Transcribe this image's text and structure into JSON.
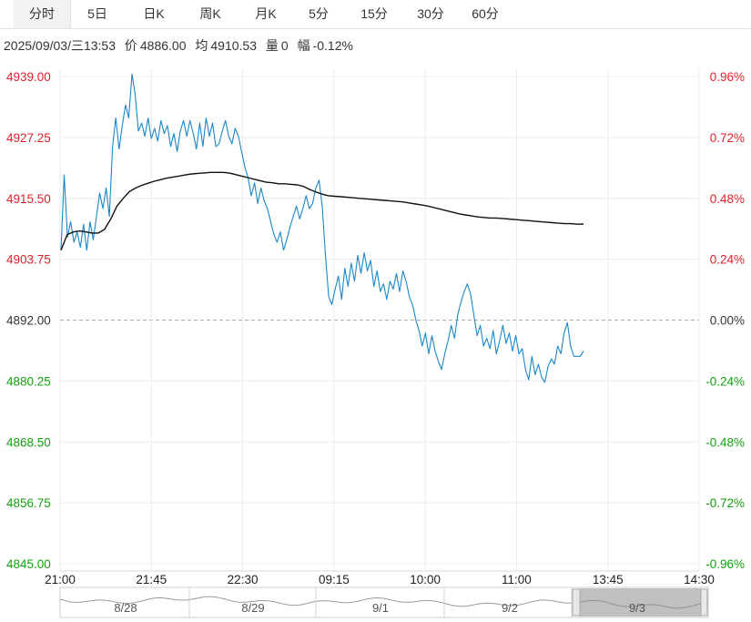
{
  "tabs": [
    {
      "label": "分时",
      "active": true
    },
    {
      "label": "5日",
      "active": false
    },
    {
      "label": "日K",
      "active": false
    },
    {
      "label": "周K",
      "active": false
    },
    {
      "label": "月K",
      "active": false
    },
    {
      "label": "5分",
      "active": false
    },
    {
      "label": "15分",
      "active": false
    },
    {
      "label": "30分",
      "active": false
    },
    {
      "label": "60分",
      "active": false
    }
  ],
  "info": {
    "datetime": "2025/09/03/三13:53",
    "price_label": "价",
    "price": "4886.00",
    "avg_label": "均",
    "avg": "4910.53",
    "vol_label": "量",
    "vol": "0",
    "chg_label": "幅",
    "chg": "-0.12%"
  },
  "chart_data": {
    "type": "line",
    "prev_close": 4892.0,
    "ylim": [
      4845.0,
      4939.0
    ],
    "y_ticks": [
      "4939.00",
      "4927.25",
      "4915.50",
      "4903.75",
      "4892.00",
      "4880.25",
      "4868.50",
      "4856.75",
      "4845.00"
    ],
    "pct_ticks": [
      "0.96%",
      "0.72%",
      "0.48%",
      "0.24%",
      "0.00%",
      "-0.24%",
      "-0.48%",
      "-0.72%",
      "-0.96%"
    ],
    "x_ticks": [
      "21:00",
      "21:45",
      "22:30",
      "09:15",
      "10:00",
      "11:00",
      "13:45",
      "14:30"
    ],
    "colors": {
      "price_line": "#1a87c9",
      "avg_line": "#111111",
      "up": "#e0202a",
      "down": "#11a30d",
      "zero_line": "#aaaaaa"
    },
    "series": [
      {
        "role": "price",
        "values": [
          4905.5,
          4920.0,
          4908.0,
          4911.0,
          4907.0,
          4909.0,
          4906.0,
          4910.5,
          4905.5,
          4911.0,
          4907.5,
          4912.0,
          4916.5,
          4913.5,
          4917.5,
          4912.0,
          4925.5,
          4931.0,
          4925.0,
          4929.5,
          4933.5,
          4931.0,
          4939.5,
          4935.5,
          4928.5,
          4930.0,
          4927.5,
          4931.0,
          4927.0,
          4929.0,
          4926.5,
          4930.5,
          4928.0,
          4929.5,
          4925.5,
          4928.0,
          4924.5,
          4928.5,
          4930.5,
          4927.5,
          4930.5,
          4928.0,
          4925.0,
          4930.0,
          4925.5,
          4931.0,
          4927.5,
          4930.0,
          4925.5,
          4926.0,
          4928.5,
          4930.5,
          4927.5,
          4926.0,
          4929.0,
          4927.5,
          4924.5,
          4921.5,
          4919.5,
          4916.0,
          4918.5,
          4914.5,
          4917.5,
          4915.0,
          4913.5,
          4911.0,
          4908.5,
          4907.0,
          4909.0,
          4905.5,
          4907.5,
          4910.0,
          4912.0,
          4914.0,
          4911.5,
          4913.5,
          4916.0,
          4913.5,
          4914.5,
          4917.5,
          4919.0,
          4914.0,
          4904.5,
          4896.5,
          4895.0,
          4898.0,
          4900.5,
          4896.0,
          4902.0,
          4898.5,
          4903.0,
          4899.5,
          4904.5,
          4901.0,
          4905.0,
          4901.5,
          4903.5,
          4898.5,
          4901.5,
          4897.5,
          4899.0,
          4896.0,
          4899.5,
          4898.0,
          4901.0,
          4897.5,
          4901.5,
          4899.5,
          4896.5,
          4895.0,
          4892.0,
          4890.0,
          4887.0,
          4889.5,
          4885.5,
          4889.0,
          4886.0,
          4884.0,
          4882.5,
          4885.5,
          4888.0,
          4891.0,
          4888.5,
          4893.0,
          4895.5,
          4897.5,
          4899.0,
          4897.0,
          4893.0,
          4889.0,
          4891.0,
          4887.0,
          4888.5,
          4886.5,
          4890.0,
          4885.5,
          4888.0,
          4891.0,
          4887.5,
          4889.5,
          4886.0,
          4889.0,
          4885.5,
          4886.5,
          4882.5,
          4880.5,
          4885.0,
          4881.5,
          4883.5,
          4881.0,
          4880.0,
          4883.0,
          4884.5,
          4883.5,
          4887.0,
          4885.5,
          4889.5,
          4891.5,
          4887.0,
          4885.0,
          4885.0,
          4885.0,
          4886.0
        ]
      },
      {
        "role": "average",
        "values": [
          4905.5,
          4908.5,
          4909.0,
          4909.2,
          4909.0,
          4908.8,
          4908.8,
          4909.5,
          4911.5,
          4914.0,
          4915.5,
          4916.8,
          4917.5,
          4918.0,
          4918.4,
          4918.8,
          4919.1,
          4919.4,
          4919.6,
          4919.8,
          4920.0,
          4920.2,
          4920.3,
          4920.4,
          4920.5,
          4920.5,
          4920.5,
          4920.4,
          4920.1,
          4919.8,
          4919.5,
          4919.2,
          4918.9,
          4918.6,
          4918.5,
          4918.3,
          4918.3,
          4918.2,
          4918.1,
          4917.8,
          4917.2,
          4916.7,
          4916.3,
          4916.0,
          4915.9,
          4915.8,
          4915.7,
          4915.6,
          4915.5,
          4915.4,
          4915.3,
          4915.2,
          4915.1,
          4915.0,
          4914.9,
          4914.8,
          4914.6,
          4914.4,
          4914.2,
          4914.0,
          4913.7,
          4913.4,
          4913.1,
          4912.8,
          4912.5,
          4912.3,
          4912.1,
          4911.9,
          4911.8,
          4911.7,
          4911.7,
          4911.6,
          4911.5,
          4911.4,
          4911.3,
          4911.2,
          4911.1,
          4911.0,
          4910.9,
          4910.8,
          4910.7,
          4910.6,
          4910.6,
          4910.5,
          4910.53
        ]
      }
    ]
  },
  "navigator": {
    "labels": [
      "8/28",
      "8/29",
      "9/1",
      "9/2",
      "9/3"
    ]
  }
}
